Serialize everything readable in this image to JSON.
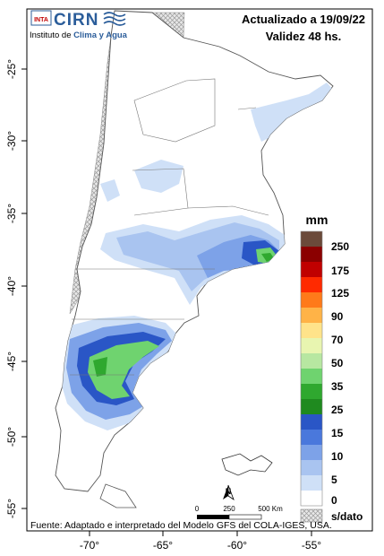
{
  "header": {
    "updated": "Actualizado a 19/09/22",
    "validity": "Validez 48 hs."
  },
  "logo": {
    "inta": "INTA",
    "cirn": "CIRN",
    "institute_prefix": "Instituto de ",
    "institute_highlight": "Clima y Agua"
  },
  "legend": {
    "unit": "mm",
    "labels": [
      "250",
      "175",
      "125",
      "90",
      "70",
      "50",
      "35",
      "25",
      "15",
      "10",
      "5",
      "0"
    ],
    "nodata_label": "s/dato",
    "colors": [
      "#6b4a3a",
      "#8b0000",
      "#c00000",
      "#ff2a00",
      "#ff7a1a",
      "#ffb347",
      "#ffe38a",
      "#e8f5b0",
      "#b7e7a1",
      "#6fd36f",
      "#2fa82f",
      "#1f8a1f",
      "#2a56c6",
      "#4a78dc",
      "#7da2e8",
      "#a9c4f0",
      "#cfe0f7",
      "#ffffff"
    ]
  },
  "axes": {
    "lat_labels": [
      "-25°",
      "-30°",
      "-35°",
      "-40°",
      "-45°",
      "-50°",
      "-55°"
    ],
    "lon_labels": [
      "-70°",
      "-65°",
      "-60°",
      "-55°"
    ]
  },
  "scale_bar": {
    "labels": [
      "0",
      "250",
      "500 Km"
    ],
    "north": "N"
  },
  "footer": {
    "source": "Fuente: Adaptado e interpretado del Modelo GFS del COLA-IGES, USA."
  }
}
